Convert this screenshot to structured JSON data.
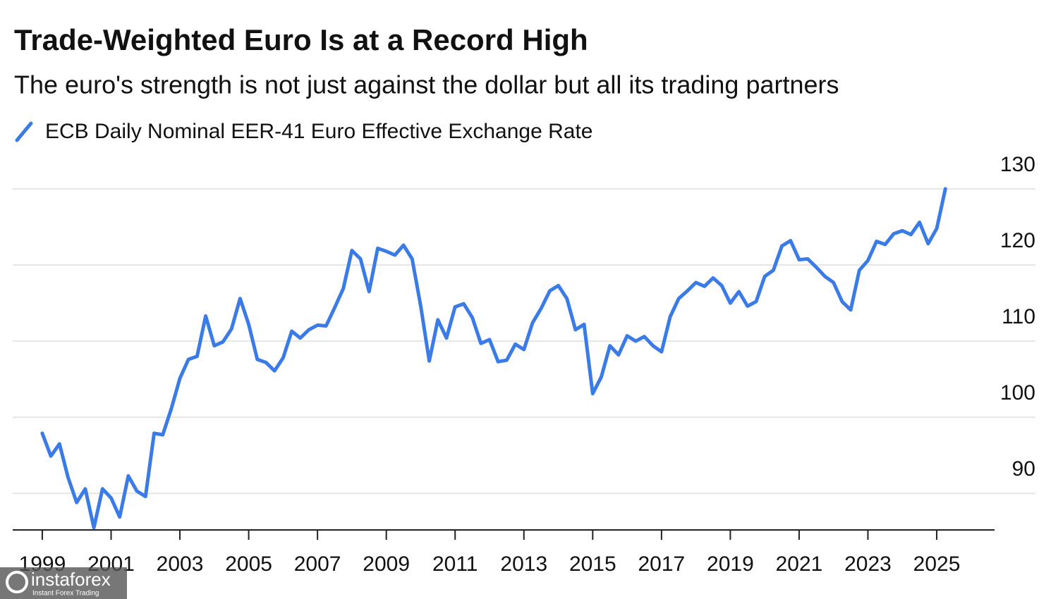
{
  "chart_data": {
    "type": "line",
    "title": "Trade-Weighted Euro Is at a Record High",
    "subtitle": "The euro's strength is not just against the dollar but all its trading partners",
    "x": [
      1999,
      1999.25,
      1999.5,
      1999.75,
      2000,
      2000.25,
      2000.5,
      2000.75,
      2001,
      2001.25,
      2001.5,
      2001.75,
      2002,
      2002.25,
      2002.5,
      2002.75,
      2003,
      2003.25,
      2003.5,
      2003.75,
      2004,
      2004.25,
      2004.5,
      2004.75,
      2005,
      2005.25,
      2005.5,
      2005.75,
      2006,
      2006.25,
      2006.5,
      2006.75,
      2007,
      2007.25,
      2007.5,
      2007.75,
      2008,
      2008.25,
      2008.5,
      2008.75,
      2009,
      2009.25,
      2009.5,
      2009.75,
      2010,
      2010.25,
      2010.5,
      2010.75,
      2011,
      2011.25,
      2011.5,
      2011.75,
      2012,
      2012.25,
      2012.5,
      2012.75,
      2013,
      2013.25,
      2013.5,
      2013.75,
      2014,
      2014.25,
      2014.5,
      2014.75,
      2015,
      2015.25,
      2015.5,
      2015.75,
      2016,
      2016.25,
      2016.5,
      2016.75,
      2017,
      2017.25,
      2017.5,
      2017.75,
      2018,
      2018.25,
      2018.5,
      2018.75,
      2019,
      2019.25,
      2019.5,
      2019.75,
      2020,
      2020.25,
      2020.5,
      2020.75,
      2021,
      2021.25,
      2021.5,
      2021.75,
      2022,
      2022.25,
      2022.5,
      2022.75,
      2023,
      2023.25,
      2023.5,
      2023.75,
      2024,
      2024.25,
      2024.5,
      2024.75,
      2025,
      2025.25
    ],
    "series": [
      {
        "name": "ECB Daily Nominal EER-41 Euro Effective Exchange Rate",
        "color": "#3b7be8",
        "values": [
          97.9,
          94.9,
          96.5,
          92.1,
          88.8,
          90.6,
          85.5,
          90.6,
          89.4,
          86.9,
          92.3,
          90.3,
          89.6,
          97.9,
          97.7,
          101.1,
          105.1,
          107.6,
          108.0,
          113.3,
          109.4,
          109.9,
          111.6,
          115.6,
          112.2,
          107.6,
          107.2,
          106.1,
          107.8,
          111.3,
          110.4,
          111.5,
          112.1,
          112.0,
          114.4,
          116.9,
          121.9,
          120.8,
          116.5,
          122.2,
          121.8,
          121.3,
          122.6,
          120.8,
          114.6,
          107.4,
          112.8,
          110.4,
          114.5,
          114.9,
          113.1,
          109.7,
          110.2,
          107.3,
          107.5,
          109.6,
          108.9,
          112.4,
          114.3,
          116.6,
          117.3,
          115.6,
          111.5,
          112.2,
          103.1,
          105.3,
          109.4,
          108.2,
          110.7,
          110.0,
          110.6,
          109.4,
          108.6,
          113.2,
          115.6,
          116.6,
          117.7,
          117.2,
          118.3,
          117.3,
          115.0,
          116.5,
          114.6,
          115.2,
          118.5,
          119.3,
          122.5,
          123.2,
          120.7,
          120.8,
          119.7,
          118.5,
          117.7,
          115.2,
          114.1,
          119.3,
          120.6,
          123.1,
          122.7,
          124.1,
          124.5,
          124.0,
          125.6,
          122.8,
          124.8,
          130.0
        ]
      }
    ],
    "xlim": [
      1998.14,
      2026.68
    ],
    "xticks": [
      1999,
      2001,
      2003,
      2005,
      2007,
      2009,
      2011,
      2013,
      2015,
      2017,
      2019,
      2021,
      2023,
      2025
    ],
    "ylim": [
      85.2,
      130
    ],
    "yticks": [
      90,
      100,
      110,
      120,
      130
    ],
    "grid": true
  },
  "watermark": {
    "name": "instaforex",
    "tagline": "Instant Forex Trading"
  }
}
